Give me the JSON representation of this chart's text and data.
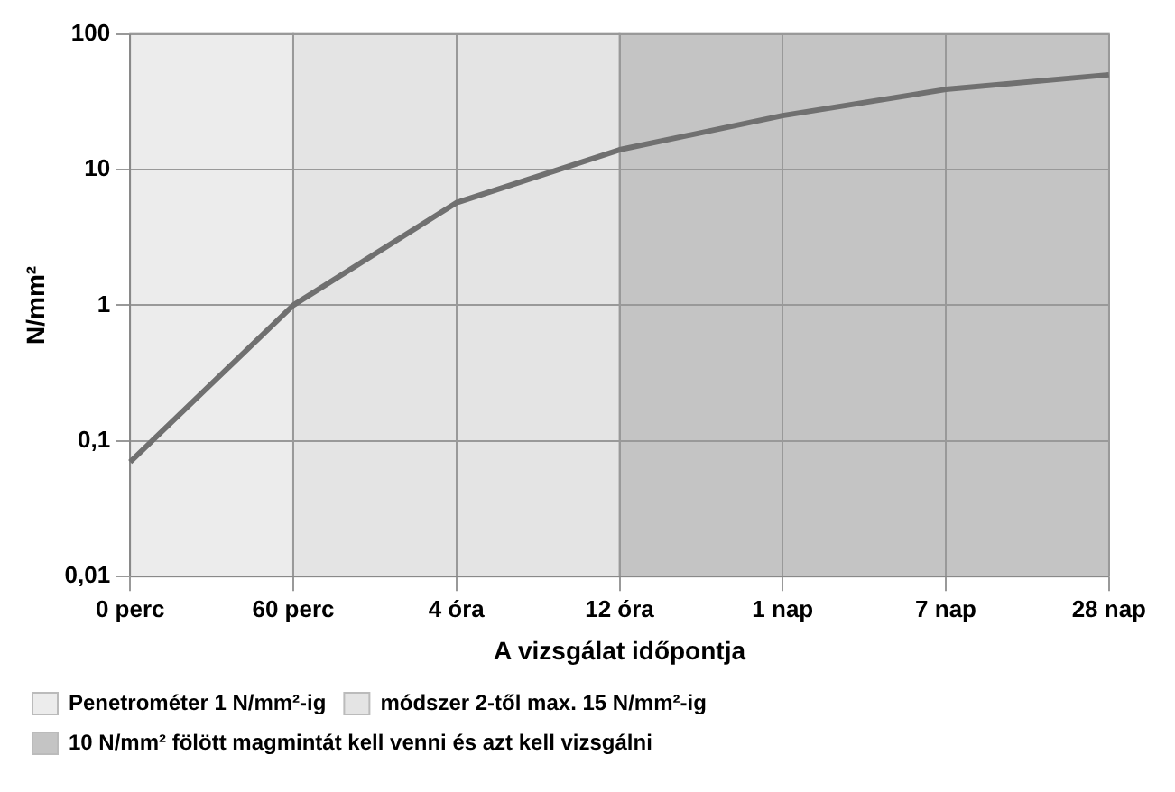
{
  "chart_data": {
    "type": "line",
    "xlabel": "A vizsgálat időpontja",
    "ylabel": "N/mm²",
    "categories": [
      "0 perc",
      "60 perc",
      "4 óra",
      "12 óra",
      "1 nap",
      "7 nap",
      "28 nap"
    ],
    "series": [
      {
        "color": "#707070",
        "values": [
          0.07,
          1,
          5.7,
          14,
          25,
          39,
          50
        ]
      }
    ],
    "log": "y",
    "ylim": [
      0.01,
      100
    ],
    "yticks": [
      {
        "value": 0.01,
        "label": "0,01"
      },
      {
        "value": 0.1,
        "label": "0,1"
      },
      1,
      10,
      100
    ],
    "grid": true,
    "legend": "bottom",
    "marker": "none",
    "line_style": "solid",
    "bands": [
      {
        "axis": "x",
        "from": "0 perc",
        "to": "60 perc",
        "label": "Penetrométer 1 N/mm²-ig",
        "color": "#ececec"
      },
      {
        "axis": "x",
        "from": "60 perc",
        "to": "12 óra",
        "label": "módszer 2-től max. 15 N/mm²-ig",
        "color": "#e4e4e4"
      },
      {
        "axis": "x",
        "from": "12 óra",
        "to": "28 nap",
        "label": "10 N/mm² fölött magmintát kell venni és azt kell vizsgálni",
        "color": "#c4c4c4"
      }
    ]
  }
}
